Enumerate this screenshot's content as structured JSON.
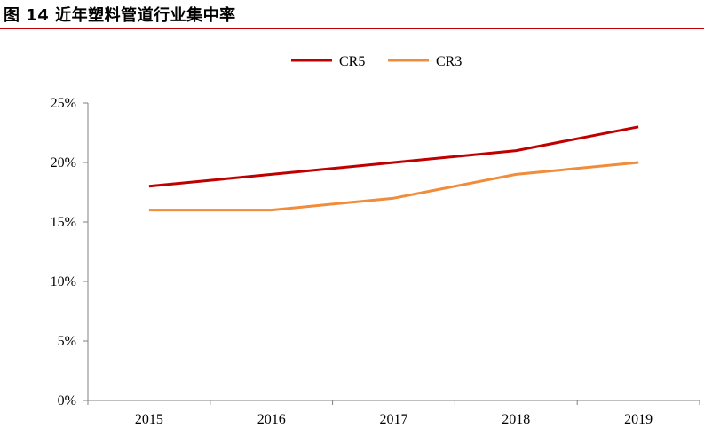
{
  "figure": {
    "title": "图 14 近年塑料管道行业集中率"
  },
  "colors": {
    "accent_rule": "#c00000",
    "CR5": "#c00000",
    "CR3": "#f08c3a"
  },
  "chart_data": {
    "type": "line",
    "categories": [
      "2015",
      "2016",
      "2017",
      "2018",
      "2019"
    ],
    "series": [
      {
        "name": "CR5",
        "values": [
          18,
          19,
          20,
          21,
          23
        ]
      },
      {
        "name": "CR3",
        "values": [
          16,
          16,
          17,
          19,
          20
        ]
      }
    ],
    "ylim": [
      0,
      25
    ],
    "yticks": [
      0,
      5,
      10,
      15,
      20,
      25
    ],
    "ytick_labels": [
      "0%",
      "5%",
      "10%",
      "15%",
      "20%",
      "25%"
    ],
    "legend_position": "top-center",
    "grid": false
  }
}
